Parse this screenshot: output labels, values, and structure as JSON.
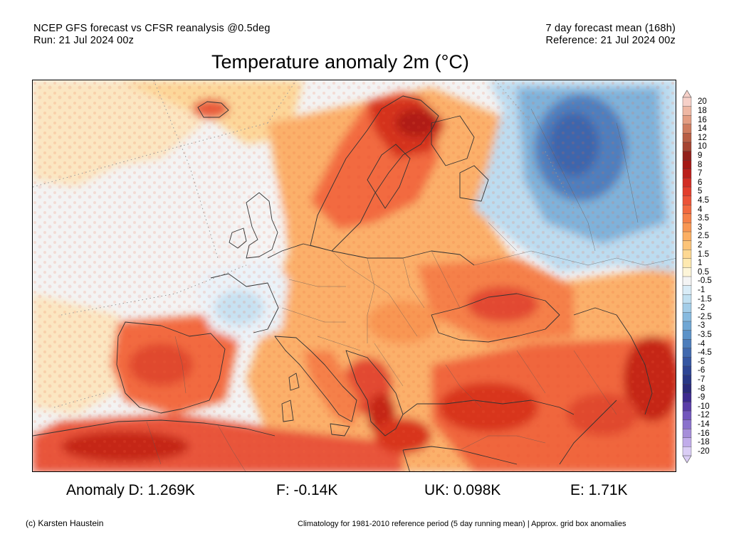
{
  "header": {
    "left_line1": "NCEP GFS forecast vs CFSR reanalysis @0.5deg",
    "left_line2": "Run: 21 Jul 2024 00z",
    "right_line1": "7 day forecast mean (168h)",
    "right_line2": "Reference: 21 Jul 2024 00z"
  },
  "title": "Temperature anomaly 2m (°C)",
  "colorbar": {
    "labels": [
      "20",
      "18",
      "16",
      "14",
      "12",
      "10",
      "9",
      "8",
      "7",
      "6",
      "5",
      "4.5",
      "4",
      "3.5",
      "3",
      "2.5",
      "2",
      "1.5",
      "1",
      "0.5",
      "-0.5",
      "-1",
      "-1.5",
      "-2",
      "-2.5",
      "-3",
      "-3.5",
      "-4",
      "-4.5",
      "-5",
      "-6",
      "-7",
      "-8",
      "-9",
      "-10",
      "-12",
      "-14",
      "-16",
      "-18",
      "-20"
    ],
    "colors": [
      "#f6d0c8",
      "#eeb7a3",
      "#e39d82",
      "#cf7c5f",
      "#b85e44",
      "#a54431",
      "#92201a",
      "#a41815",
      "#bb1f1b",
      "#d22d24",
      "#e23e2c",
      "#eb5337",
      "#f1693f",
      "#f58048",
      "#f89753",
      "#fbaf63",
      "#fcc478",
      "#fdd892",
      "#fee9b0",
      "#fdf5d8",
      "#f4f4f4",
      "#d9ecf7",
      "#c1e0f1",
      "#a3cde8",
      "#87badf",
      "#6fa6d4",
      "#5c92c8",
      "#4d7dbb",
      "#4169ae",
      "#3556a2",
      "#2d4594",
      "#283785",
      "#2a2a7a",
      "#3d2a8f",
      "#5a3da8",
      "#7257bc",
      "#8a72cc",
      "#a68ed9",
      "#c1acea",
      "#dacdf5"
    ]
  },
  "stats": {
    "germany": "Anomaly D: 1.269K",
    "france": "F: -0.14K",
    "uk": "UK: 0.098K",
    "spain": "E: 1.71K"
  },
  "footer": {
    "credit": "(c) Karsten Haustein",
    "climatology_note": "Climatology for 1981-2010 reference period (5 day running mean) | Approx. grid box anomalies"
  }
}
